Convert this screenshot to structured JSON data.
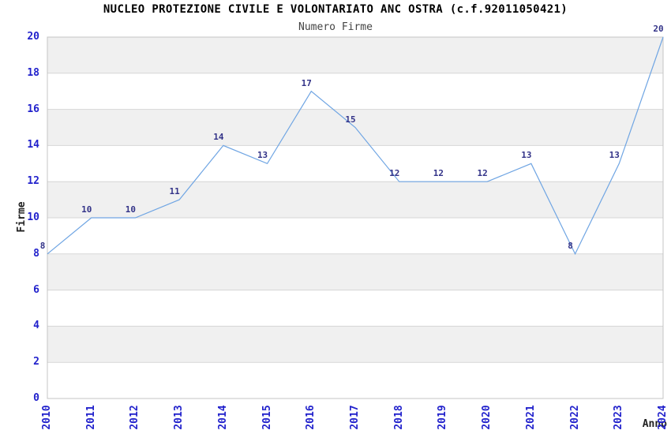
{
  "chart_data": {
    "type": "line",
    "title": "NUCLEO PROTEZIONE CIVILE E VOLONTARIATO ANC OSTRA (c.f.92011050421)",
    "subtitle": "Numero Firme",
    "xlabel": "Anno",
    "ylabel": "Firme",
    "categories": [
      "2010",
      "2011",
      "2012",
      "2013",
      "2014",
      "2015",
      "2016",
      "2017",
      "2018",
      "2019",
      "2020",
      "2021",
      "2022",
      "2023",
      "2024"
    ],
    "values": [
      8,
      10,
      10,
      11,
      14,
      13,
      17,
      15,
      12,
      12,
      12,
      13,
      8,
      13,
      20
    ],
    "ylim": [
      0,
      20
    ],
    "ytick_step": 2,
    "yticks": [
      0,
      2,
      4,
      6,
      8,
      10,
      12,
      14,
      16,
      18,
      20
    ],
    "grid": "horizontal alternating bands every 2 units, gray bands on 2-4, 6-8, 10-12, 14-16, 18-20",
    "legend": "none",
    "point_labels_shown": true,
    "colors": {
      "line": "#6fa5e3",
      "tick_label": "#2222cc",
      "data_label": "#333388",
      "band_gray": "#f0f0f0",
      "band_white": "#ffffff",
      "gridline": "#d6d6d6",
      "plot_border": "#c4c4c4",
      "title": "#000000",
      "subtitle": "#444444",
      "axis_title": "#222222"
    }
  }
}
